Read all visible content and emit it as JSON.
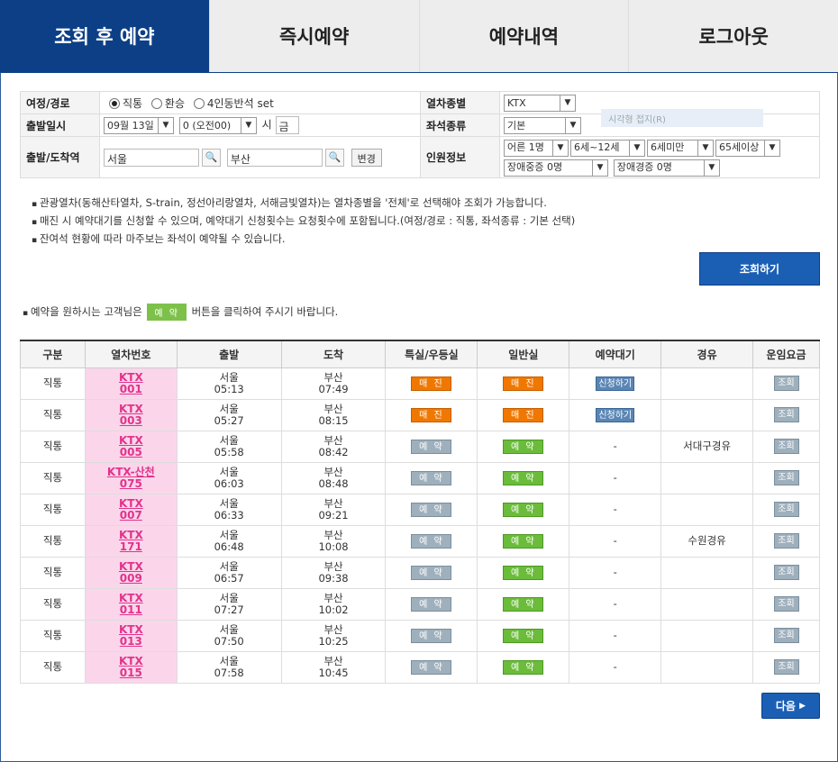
{
  "tabs": [
    "조회 후 예약",
    "즉시예약",
    "예약내역",
    "로그아웃"
  ],
  "form": {
    "route_label": "여정/경로",
    "route_options": [
      "직통",
      "환승",
      "4인동반석 set"
    ],
    "train_type_label": "열차종별",
    "train_type_value": "KTX",
    "date_label": "출발일시",
    "month_day": "09월 13일",
    "hour": "0 (오전00)",
    "hour_unit": "시",
    "weekday": "금",
    "seat_type_label": "좌석종류",
    "seat_type_value": "기본",
    "ghost_text": "시각형 접지(R)",
    "station_label": "출발/도착역",
    "from": "서울",
    "to": "부산",
    "change_label": "변경",
    "pax_label": "인원정보",
    "pax": [
      "어른 1명",
      "6세~12세",
      "6세미만",
      "65세이상",
      "장애중증 0명",
      "장애경증 0명"
    ]
  },
  "notes": [
    "관광열차(동해산타열차, S-train, 정선아리랑열차, 서해금빛열차)는 열차종별을 '전체'로 선택해야 조회가 가능합니다.",
    "매진 시 예약대기를 신청할 수 있으며, 예약대기 신청횟수는 요청횟수에 포함됩니다.(여정/경로 : 직통, 좌석종류 : 기본 선택)",
    "잔여석 현황에 따라 마주보는 좌석이 예약될 수 있습니다."
  ],
  "search_button": "조회하기",
  "hint": {
    "before": "예약을 원하시는 고객님은",
    "badge": "예 약",
    "after": "버튼을 클릭하여 주시기 바랍니다."
  },
  "columns": [
    "구분",
    "열차번호",
    "출발",
    "도착",
    "특실/우등실",
    "일반실",
    "예약대기",
    "경유",
    "운임요금"
  ],
  "rows": [
    {
      "kind": "직통",
      "no1": "KTX",
      "no2": "001",
      "dep": "서울",
      "dep_t": "05:13",
      "arr": "부산",
      "arr_t": "07:49",
      "first": "매 진",
      "first_st": "sold",
      "gen": "매 진",
      "gen_st": "sold",
      "wait": "신청하기",
      "via": "",
      "fare": "조회"
    },
    {
      "kind": "직통",
      "no1": "KTX",
      "no2": "003",
      "dep": "서울",
      "dep_t": "05:27",
      "arr": "부산",
      "arr_t": "08:15",
      "first": "매 진",
      "first_st": "sold",
      "gen": "매 진",
      "gen_st": "sold",
      "wait": "신청하기",
      "via": "",
      "fare": "조회"
    },
    {
      "kind": "직통",
      "no1": "KTX",
      "no2": "005",
      "dep": "서울",
      "dep_t": "05:58",
      "arr": "부산",
      "arr_t": "08:42",
      "first": "예 약",
      "first_st": "gray",
      "gen": "예 약",
      "gen_st": "green",
      "wait": "-",
      "via": "서대구경유",
      "fare": "조회"
    },
    {
      "kind": "직통",
      "no1": "KTX-산천",
      "no2": "075",
      "dep": "서울",
      "dep_t": "06:03",
      "arr": "부산",
      "arr_t": "08:48",
      "first": "예 약",
      "first_st": "gray",
      "gen": "예 약",
      "gen_st": "green",
      "wait": "-",
      "via": "",
      "fare": "조회"
    },
    {
      "kind": "직통",
      "no1": "KTX",
      "no2": "007",
      "dep": "서울",
      "dep_t": "06:33",
      "arr": "부산",
      "arr_t": "09:21",
      "first": "예 약",
      "first_st": "gray",
      "gen": "예 약",
      "gen_st": "green",
      "wait": "-",
      "via": "",
      "fare": "조회"
    },
    {
      "kind": "직통",
      "no1": "KTX",
      "no2": "171",
      "dep": "서울",
      "dep_t": "06:48",
      "arr": "부산",
      "arr_t": "10:08",
      "first": "예 약",
      "first_st": "gray",
      "gen": "예 약",
      "gen_st": "green",
      "wait": "-",
      "via": "수원경유",
      "fare": "조회"
    },
    {
      "kind": "직통",
      "no1": "KTX",
      "no2": "009",
      "dep": "서울",
      "dep_t": "06:57",
      "arr": "부산",
      "arr_t": "09:38",
      "first": "예 약",
      "first_st": "gray",
      "gen": "예 약",
      "gen_st": "green",
      "wait": "-",
      "via": "",
      "fare": "조회"
    },
    {
      "kind": "직통",
      "no1": "KTX",
      "no2": "011",
      "dep": "서울",
      "dep_t": "07:27",
      "arr": "부산",
      "arr_t": "10:02",
      "first": "예 약",
      "first_st": "gray",
      "gen": "예 약",
      "gen_st": "green",
      "wait": "-",
      "via": "",
      "fare": "조회"
    },
    {
      "kind": "직통",
      "no1": "KTX",
      "no2": "013",
      "dep": "서울",
      "dep_t": "07:50",
      "arr": "부산",
      "arr_t": "10:25",
      "first": "예 약",
      "first_st": "gray",
      "gen": "예 약",
      "gen_st": "green",
      "wait": "-",
      "via": "",
      "fare": "조회"
    },
    {
      "kind": "직통",
      "no1": "KTX",
      "no2": "015",
      "dep": "서울",
      "dep_t": "07:58",
      "arr": "부산",
      "arr_t": "10:45",
      "first": "예 약",
      "first_st": "gray",
      "gen": "예 약",
      "gen_st": "green",
      "wait": "-",
      "via": "",
      "fare": "조회"
    }
  ],
  "next_button": "다음"
}
